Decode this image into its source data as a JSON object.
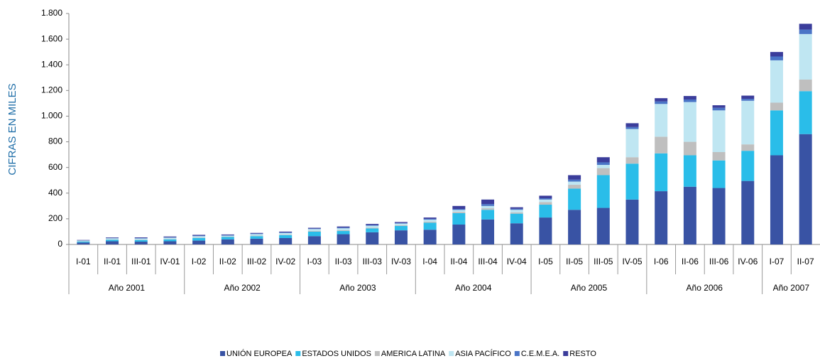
{
  "chart_data": {
    "type": "stacked-bar",
    "y_label": "CIFRAS EN MILES",
    "category_groups": [
      {
        "name": "Año 2001",
        "categories": [
          "I-01",
          "II-01",
          "III-01",
          "IV-01"
        ]
      },
      {
        "name": "Año 2002",
        "categories": [
          "I-02",
          "II-02",
          "III-02",
          "IV-02"
        ]
      },
      {
        "name": "Año 2003",
        "categories": [
          "I-03",
          "II-03",
          "III-03",
          "IV-03"
        ]
      },
      {
        "name": "Año 2004",
        "categories": [
          "I-04",
          "II-04",
          "III-04",
          "IV-04"
        ]
      },
      {
        "name": "Año 2005",
        "categories": [
          "I-05",
          "II-05",
          "III-05",
          "IV-05"
        ]
      },
      {
        "name": "Año 2006",
        "categories": [
          "I-06",
          "II-06",
          "III-06",
          "IV-06"
        ]
      },
      {
        "name": "Año 2007",
        "categories": [
          "I-07",
          "II-07"
        ]
      }
    ],
    "series": [
      {
        "name": "UNIÓN EUROPEA",
        "color": "#3953a4",
        "values": [
          15,
          25,
          22,
          25,
          30,
          40,
          45,
          50,
          65,
          80,
          95,
          110,
          115,
          155,
          195,
          165,
          210,
          270,
          285,
          350,
          415,
          450,
          440,
          495,
          695,
          860
        ]
      },
      {
        "name": "ESTADOS UNIDOS",
        "color": "#2abde9",
        "values": [
          8,
          12,
          13,
          15,
          20,
          18,
          20,
          22,
          35,
          25,
          30,
          35,
          55,
          89,
          75,
          75,
          100,
          165,
          255,
          280,
          295,
          245,
          215,
          235,
          350,
          335
        ]
      },
      {
        "name": "AMERICA LATINA",
        "color": "#bfbfbf",
        "values": [
          2,
          3,
          3,
          3,
          3,
          3,
          4,
          4,
          5,
          6,
          6,
          6,
          8,
          10,
          12,
          10,
          20,
          30,
          55,
          50,
          130,
          105,
          65,
          50,
          60,
          90
        ]
      },
      {
        "name": "ASIA PACÍFICO",
        "color": "#bfe6f2",
        "values": [
          5,
          8,
          9,
          10,
          12,
          8,
          12,
          14,
          15,
          15,
          15,
          12,
          15,
          15,
          18,
          20,
          20,
          25,
          25,
          220,
          255,
          310,
          325,
          340,
          330,
          355
        ]
      },
      {
        "name": "C.E.M.E.A.",
        "color": "#4a74c6",
        "values": [
          2,
          3,
          3,
          3,
          4,
          4,
          4,
          4,
          4,
          6,
          6,
          5,
          7,
          8,
          15,
          8,
          10,
          15,
          20,
          15,
          20,
          20,
          20,
          15,
          30,
          35
        ]
      },
      {
        "name": "RESTO",
        "color": "#3b3d9b",
        "values": [
          3,
          4,
          5,
          6,
          6,
          5,
          5,
          6,
          6,
          8,
          8,
          7,
          10,
          23,
          35,
          12,
          20,
          35,
          40,
          30,
          25,
          27,
          20,
          25,
          35,
          45
        ]
      }
    ],
    "ylim": [
      0,
      1800
    ],
    "yticks": [
      0,
      200,
      400,
      600,
      800,
      {
        "value": 1000,
        "label": "1.000"
      },
      {
        "value": 1200,
        "label": "1.200"
      },
      {
        "value": 1400,
        "label": "1.400"
      },
      {
        "value": 1600,
        "label": "1.600"
      },
      {
        "value": 1800,
        "label": "1.800"
      }
    ],
    "legend": "bottom"
  }
}
